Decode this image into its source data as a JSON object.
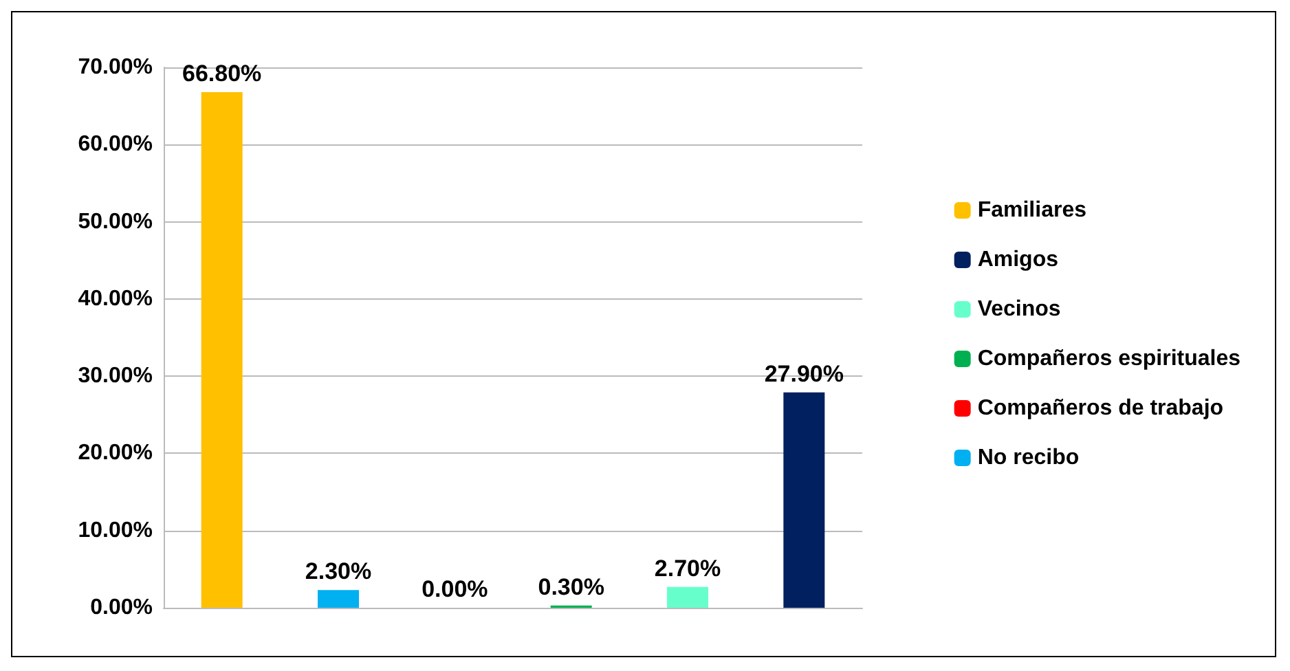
{
  "chart_data": {
    "type": "bar",
    "categories": [
      null,
      null,
      null,
      null,
      null,
      null
    ],
    "series": [
      {
        "name": "Familiares",
        "color": "#ffc000",
        "values": [
          66.8,
          null,
          null,
          null,
          null,
          null
        ],
        "value_labels": [
          "66.80%",
          null,
          null,
          null,
          null,
          null
        ]
      },
      {
        "name": "Amigos",
        "color": "#002060",
        "values": [
          null,
          null,
          null,
          null,
          null,
          27.9
        ],
        "value_labels": [
          null,
          null,
          null,
          null,
          null,
          "27.90%"
        ]
      },
      {
        "name": "Vecinos",
        "color": "#66ffcc",
        "values": [
          null,
          null,
          null,
          null,
          2.7,
          null
        ],
        "value_labels": [
          null,
          null,
          null,
          null,
          "2.70%",
          null
        ]
      },
      {
        "name": "Compañeros espirituales",
        "color": "#00b050",
        "values": [
          null,
          null,
          null,
          0.3,
          null,
          null
        ],
        "value_labels": [
          null,
          null,
          null,
          "0.30%",
          null,
          null
        ]
      },
      {
        "name": "Compañeros de trabajo",
        "color": "#ff0000",
        "values": [
          null,
          null,
          0.0,
          null,
          null,
          null
        ],
        "value_labels": [
          null,
          null,
          "0.00%",
          null,
          null,
          null
        ]
      },
      {
        "name": "No recibo",
        "color": "#00b0f0",
        "values": [
          null,
          2.3,
          null,
          null,
          null,
          null
        ],
        "value_labels": [
          null,
          "2.30%",
          null,
          null,
          null,
          null
        ]
      }
    ],
    "ylim": [
      0,
      70
    ],
    "yticks": [
      {
        "value": 0,
        "label": "0.00%"
      },
      {
        "value": 10,
        "label": "10.00%"
      },
      {
        "value": 20,
        "label": "20.00%"
      },
      {
        "value": 30,
        "label": "30.00%"
      },
      {
        "value": 40,
        "label": "40.00%"
      },
      {
        "value": 50,
        "label": "50.00%"
      },
      {
        "value": 60,
        "label": "60.00%"
      },
      {
        "value": 70,
        "label": "70.00%"
      }
    ],
    "grid": "y",
    "legend": "right"
  }
}
